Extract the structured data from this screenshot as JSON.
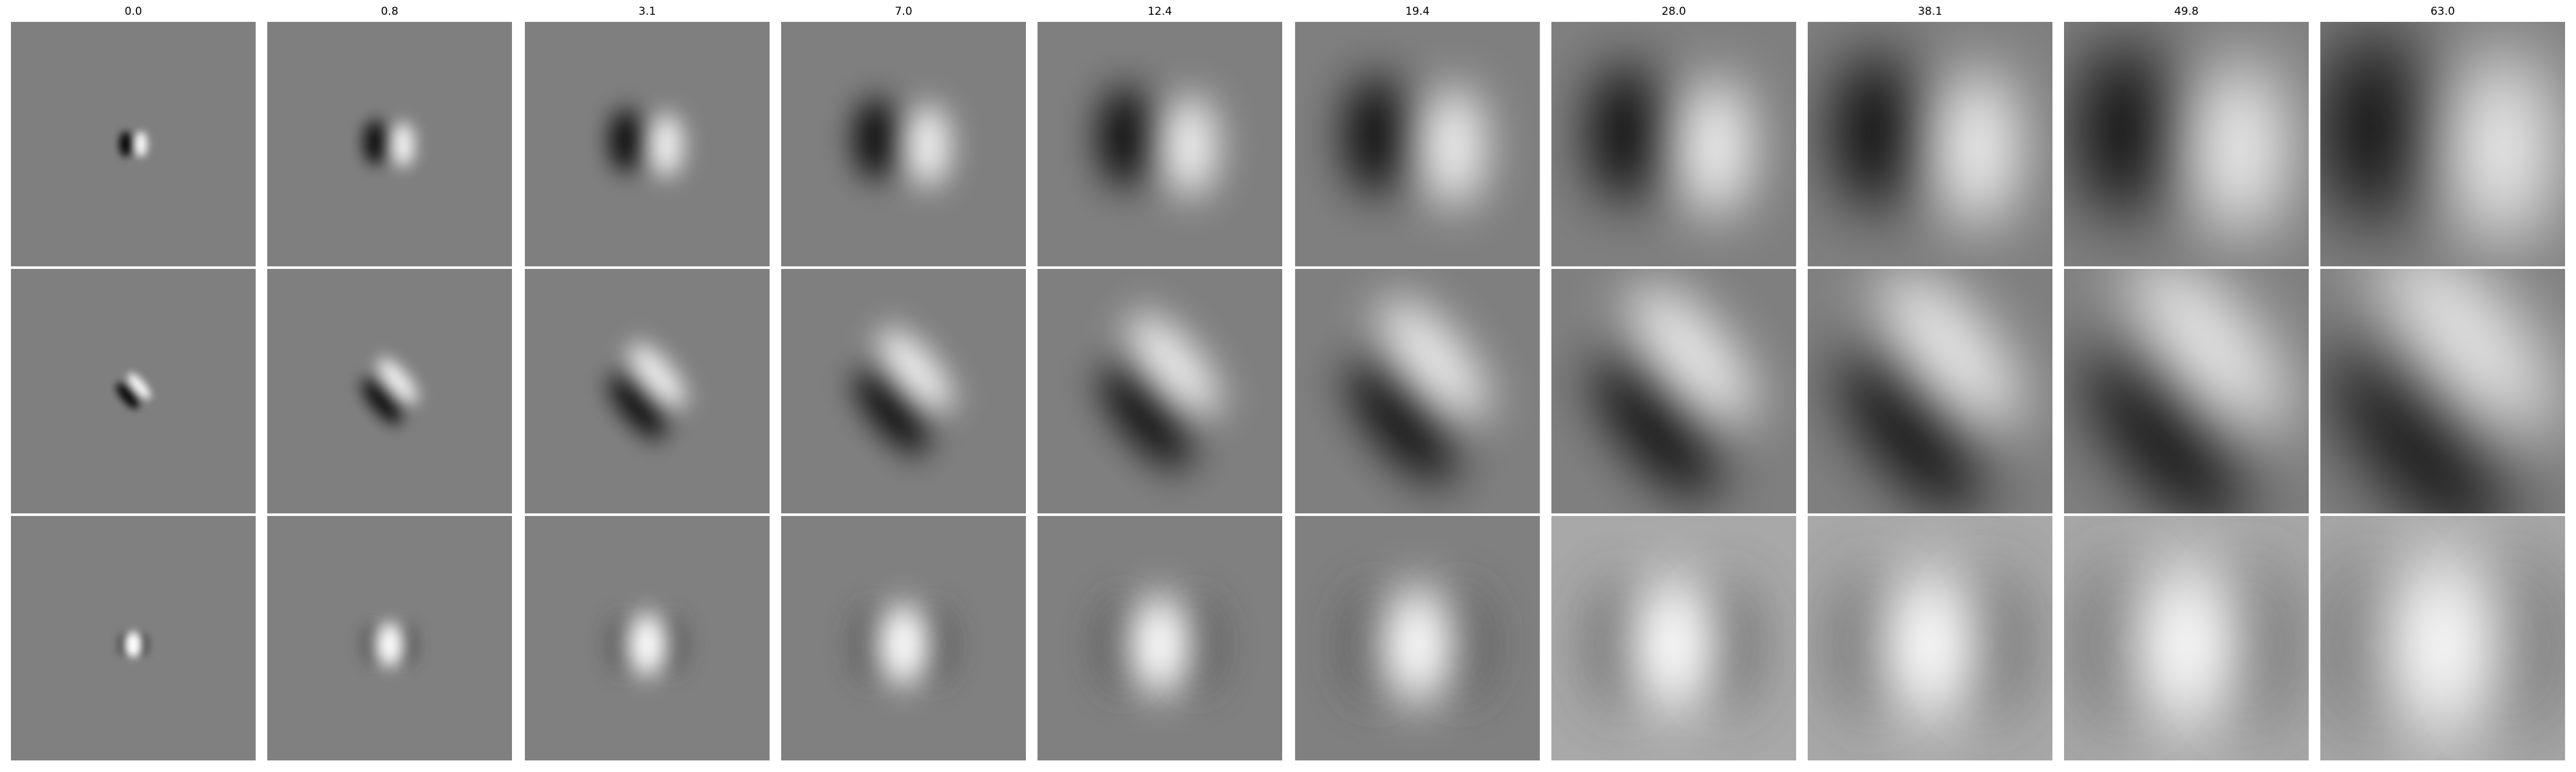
{
  "figure": {
    "column_titles": [
      "0.0",
      "0.8",
      "3.1",
      "7.0",
      "12.4",
      "19.4",
      "28.0",
      "38.1",
      "49.8",
      "63.0"
    ],
    "rows": [
      {
        "name": "row-1",
        "pattern": "vertical-dipole-dark-left-bright-right"
      },
      {
        "name": "row-2",
        "pattern": "diagonal-dipole-dark-lower-left-bright-upper-right"
      },
      {
        "name": "row-3",
        "pattern": "central-bright-blob-dark-flanks"
      }
    ],
    "colormap": "grayscale",
    "background_color": "#7f7f7f"
  }
}
